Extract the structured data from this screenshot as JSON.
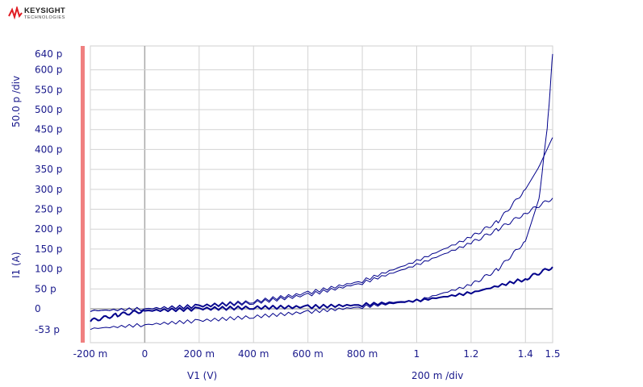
{
  "brand": {
    "name": "KEYSIGHT",
    "sub": "TECHNOLOGIES",
    "color": "#e01b22"
  },
  "chart_data": {
    "type": "line",
    "title": "",
    "xlabel": "V1 (V)",
    "ylabel": "I1 (A)",
    "x_div_label": "200 m /div",
    "y_div_label": "50.0 p /div",
    "x_unit": "V",
    "y_unit": "A",
    "xlim": [
      -0.2,
      1.5
    ],
    "ylim": [
      -0.085,
      0.66
    ],
    "y_scale": "p (1e-12)",
    "grid": true,
    "x_ticks": [
      {
        "v": -0.2,
        "label": "-200 m"
      },
      {
        "v": 0,
        "label": "0"
      },
      {
        "v": 0.2,
        "label": "200 m"
      },
      {
        "v": 0.4,
        "label": "400 m"
      },
      {
        "v": 0.6,
        "label": "600 m"
      },
      {
        "v": 0.8,
        "label": "800 m"
      },
      {
        "v": 1.0,
        "label": "1"
      },
      {
        "v": 1.2,
        "label": "1.2"
      },
      {
        "v": 1.4,
        "label": "1.4"
      },
      {
        "v": 1.5,
        "label": "1.5"
      }
    ],
    "y_ticks": [
      {
        "v": 640,
        "label": "640 p"
      },
      {
        "v": 600,
        "label": "600 p"
      },
      {
        "v": 550,
        "label": "550 p"
      },
      {
        "v": 500,
        "label": "500 p"
      },
      {
        "v": 450,
        "label": "450 p"
      },
      {
        "v": 400,
        "label": "400 p"
      },
      {
        "v": 350,
        "label": "350 p"
      },
      {
        "v": 300,
        "label": "300 p"
      },
      {
        "v": 250,
        "label": "250 p"
      },
      {
        "v": 200,
        "label": "200 p"
      },
      {
        "v": 150,
        "label": "150 p"
      },
      {
        "v": 100,
        "label": "100 p"
      },
      {
        "v": 50,
        "label": "50 p"
      },
      {
        "v": 0,
        "label": "0"
      },
      {
        "v": -53,
        "label": "-53 p"
      }
    ],
    "x_grid": [
      -0.2,
      0,
      0.2,
      0.4,
      0.6,
      0.8,
      1.0,
      1.2,
      1.4
    ],
    "y_grid": [
      600,
      550,
      500,
      450,
      400,
      350,
      300,
      250,
      200,
      150,
      100,
      50,
      0
    ],
    "trace_color": "#00008b",
    "axis_bar_color": "#f08080",
    "series": [
      {
        "width": 2,
        "points": [
          [
            -0.2,
            -30
          ],
          [
            -0.1,
            -15
          ],
          [
            0,
            -5
          ],
          [
            0.2,
            0
          ],
          [
            0.4,
            3
          ],
          [
            0.6,
            5
          ],
          [
            0.8,
            10
          ],
          [
            1.0,
            20
          ],
          [
            1.2,
            40
          ],
          [
            1.4,
            75
          ],
          [
            1.5,
            105
          ]
        ]
      },
      {
        "width": 1,
        "points": [
          [
            -0.2,
            -5
          ],
          [
            0,
            0
          ],
          [
            0.2,
            8
          ],
          [
            0.4,
            18
          ],
          [
            0.6,
            40
          ],
          [
            0.8,
            70
          ],
          [
            1.0,
            120
          ],
          [
            1.2,
            180
          ],
          [
            1.3,
            220
          ],
          [
            1.4,
            300
          ],
          [
            1.45,
            360
          ],
          [
            1.5,
            430
          ]
        ]
      },
      {
        "width": 1,
        "points": [
          [
            -0.2,
            -5
          ],
          [
            0,
            0
          ],
          [
            0.2,
            6
          ],
          [
            0.4,
            15
          ],
          [
            0.6,
            35
          ],
          [
            0.8,
            65
          ],
          [
            1.0,
            110
          ],
          [
            1.2,
            165
          ],
          [
            1.3,
            200
          ],
          [
            1.4,
            240
          ],
          [
            1.5,
            278
          ]
        ]
      },
      {
        "width": 1,
        "points": [
          [
            -0.2,
            -50
          ],
          [
            0,
            -40
          ],
          [
            0.2,
            -30
          ],
          [
            0.4,
            -20
          ],
          [
            0.6,
            -8
          ],
          [
            0.8,
            5
          ],
          [
            1.0,
            20
          ],
          [
            1.2,
            60
          ],
          [
            1.3,
            100
          ],
          [
            1.4,
            170
          ],
          [
            1.45,
            280
          ],
          [
            1.48,
            450
          ],
          [
            1.5,
            640
          ]
        ]
      }
    ]
  }
}
